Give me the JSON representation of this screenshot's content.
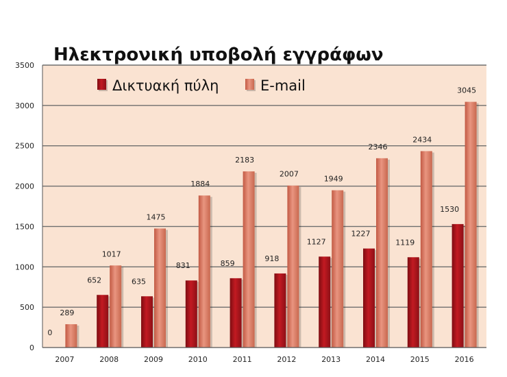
{
  "chart_data": {
    "type": "bar",
    "title": "Ηλεκτρονική υποβολή εγγράφων",
    "categories": [
      "2007",
      "2008",
      "2009",
      "2010",
      "2011",
      "2012",
      "2013",
      "2014",
      "2015",
      "2016"
    ],
    "series": [
      {
        "name": "Δικτυακή πύλη",
        "values": [
          0,
          652,
          635,
          831,
          859,
          918,
          1127,
          1227,
          1119,
          1530
        ]
      },
      {
        "name": "E-mail",
        "values": [
          289,
          1017,
          1475,
          1884,
          2183,
          2007,
          1949,
          2346,
          2434,
          3045
        ]
      }
    ],
    "ylim": [
      0,
      3500
    ],
    "yticks": [
      0,
      500,
      1000,
      1500,
      2000,
      2500,
      3000,
      3500
    ],
    "grid": true,
    "legend": "top",
    "colors": {
      "Δικτυακή πύλη": "#b0151c",
      "E-mail": "#de7f66",
      "plot_background": "#fae3d2",
      "gridline": "#6e6e6e"
    }
  }
}
